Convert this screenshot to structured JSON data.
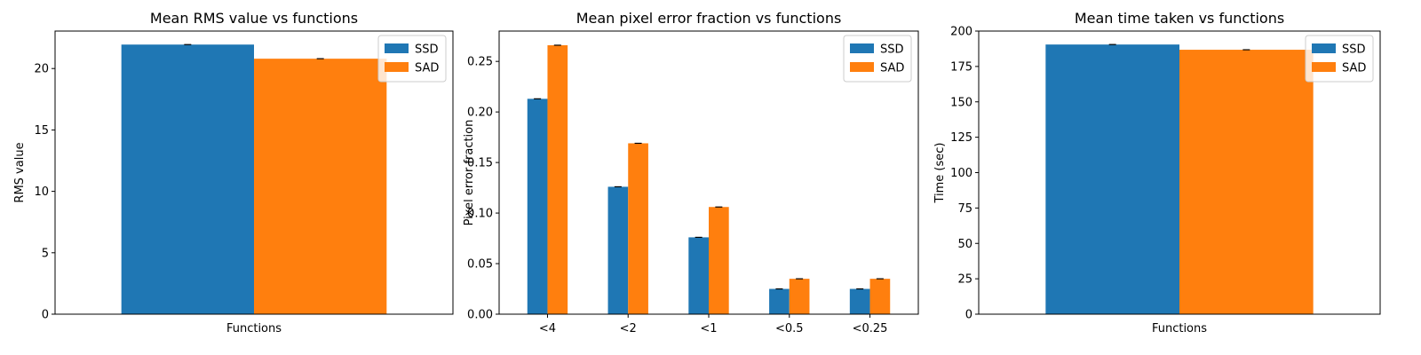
{
  "colors": {
    "SSD": "#1f77b4",
    "SAD": "#ff7f0e",
    "axis": "#000000",
    "error_bar": "#000000",
    "legend_border": "#cccccc"
  },
  "chart_data": [
    {
      "type": "bar",
      "title": "Mean RMS value vs functions",
      "xlabel": "Functions",
      "ylabel": "RMS value",
      "categories": [
        ""
      ],
      "series": [
        {
          "name": "SSD",
          "values": [
            21.95
          ]
        },
        {
          "name": "SAD",
          "values": [
            20.8
          ]
        }
      ],
      "ylim": [
        0,
        23.05
      ],
      "yticks": [
        0,
        5,
        10,
        15,
        20
      ],
      "ytick_labels": [
        "0",
        "5",
        "10",
        "15",
        "20"
      ],
      "legend": "top-right",
      "grid": false,
      "error_bars": true
    },
    {
      "type": "bar",
      "title": "Mean pixel error fraction vs functions",
      "xlabel": "",
      "ylabel": "Pixel error fraction",
      "categories": [
        "<4",
        "<2",
        "<1",
        "<0.5",
        "<0.25"
      ],
      "series": [
        {
          "name": "SSD",
          "values": [
            0.213,
            0.126,
            0.076,
            0.025,
            0.025
          ]
        },
        {
          "name": "SAD",
          "values": [
            0.266,
            0.169,
            0.106,
            0.035,
            0.035
          ]
        }
      ],
      "ylim": [
        0,
        0.28
      ],
      "yticks": [
        0,
        0.05,
        0.1,
        0.15,
        0.2,
        0.25
      ],
      "ytick_labels": [
        "0.00",
        "0.05",
        "0.10",
        "0.15",
        "0.20",
        "0.25"
      ],
      "legend": "top-right",
      "grid": false,
      "error_bars": true
    },
    {
      "type": "bar",
      "title": "Mean time taken vs functions",
      "xlabel": "Functions",
      "ylabel": "Time (sec)",
      "categories": [
        ""
      ],
      "series": [
        {
          "name": "SSD",
          "values": [
            190.5
          ]
        },
        {
          "name": "SAD",
          "values": [
            186.8
          ]
        }
      ],
      "ylim": [
        0,
        200
      ],
      "yticks": [
        0,
        25,
        50,
        75,
        100,
        125,
        150,
        175,
        200
      ],
      "ytick_labels": [
        "0",
        "25",
        "50",
        "75",
        "100",
        "125",
        "150",
        "175",
        "200"
      ],
      "legend": "top-right",
      "grid": false,
      "error_bars": true
    }
  ]
}
